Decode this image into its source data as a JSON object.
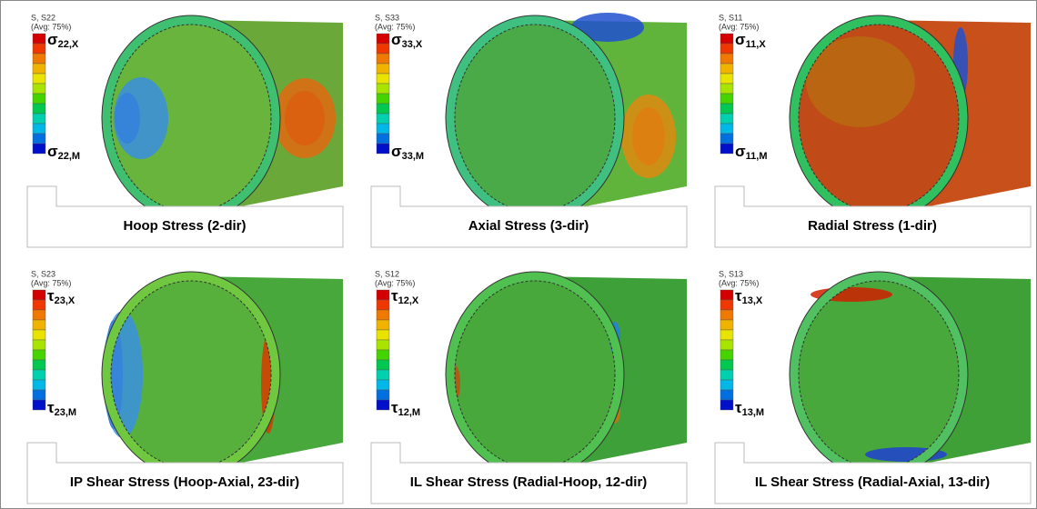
{
  "panels": [
    {
      "variable": "S, S22",
      "averaging": "(Avg: 75%)",
      "max_symbol": "σ",
      "max_sub": "22,X",
      "min_symbol": "σ",
      "min_sub": "22,M",
      "caption": "Hoop Stress (2-dir)"
    },
    {
      "variable": "S, S33",
      "averaging": "(Avg: 75%)",
      "max_symbol": "σ",
      "max_sub": "33,X",
      "min_symbol": "σ",
      "min_sub": "33,M",
      "caption": "Axial Stress (3-dir)"
    },
    {
      "variable": "S, S11",
      "averaging": "(Avg: 75%)",
      "max_symbol": "σ",
      "max_sub": "11,X",
      "min_symbol": "σ",
      "min_sub": "11,M",
      "caption": "Radial Stress (1-dir)"
    },
    {
      "variable": "S, S23",
      "averaging": "(Avg: 75%)",
      "max_symbol": "τ",
      "max_sub": "23,X",
      "min_symbol": "τ",
      "min_sub": "23,M",
      "caption": "IP Shear Stress (Hoop-Axial, 23-dir)"
    },
    {
      "variable": "S, S12",
      "averaging": "(Avg: 75%)",
      "max_symbol": "τ",
      "max_sub": "12,X",
      "min_symbol": "τ",
      "min_sub": "12,M",
      "caption": "IL Shear Stress (Radial-Hoop, 12-dir)"
    },
    {
      "variable": "S, S13",
      "averaging": "(Avg: 75%)",
      "max_symbol": "τ",
      "max_sub": "13,X",
      "min_symbol": "τ",
      "min_sub": "13,M",
      "caption": "IL Shear Stress (Radial-Axial, 13-dir)"
    }
  ]
}
